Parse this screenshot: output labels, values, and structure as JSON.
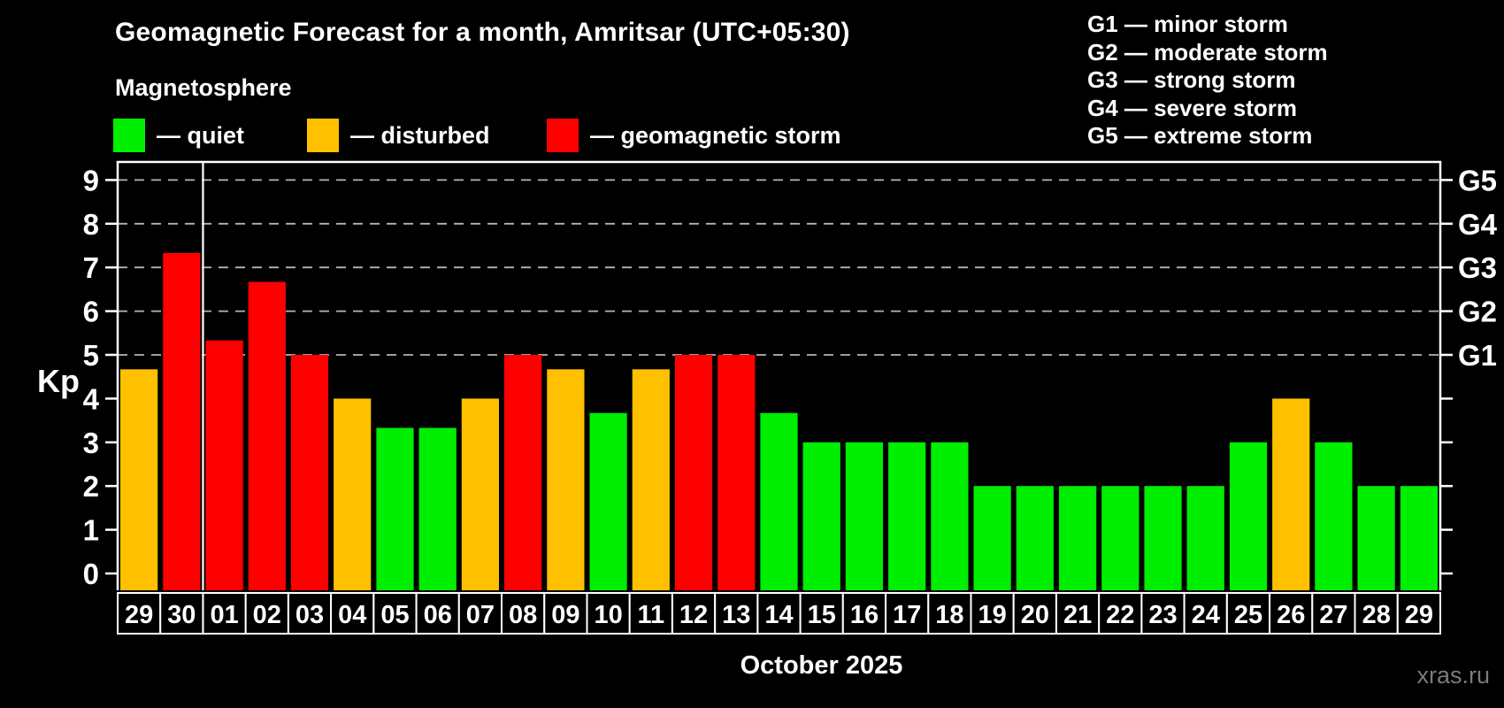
{
  "header": {
    "title": "Geomagnetic Forecast for a month, Amritsar (UTC+05:30)",
    "subtitle": "Magnetosphere",
    "watermark": "xras.ru"
  },
  "legend": {
    "dash": "—",
    "items": [
      {
        "key": "quiet",
        "label": "quiet",
        "color": "#00ee00"
      },
      {
        "key": "disturbed",
        "label": "disturbed",
        "color": "#ffc000"
      },
      {
        "key": "storm",
        "label": "geomagnetic storm",
        "color": "#ff0000"
      }
    ]
  },
  "storm_scale": {
    "separator": "—",
    "items": [
      {
        "code": "G1",
        "label": "minor storm",
        "kp": 5
      },
      {
        "code": "G2",
        "label": "moderate storm",
        "kp": 6
      },
      {
        "code": "G3",
        "label": "strong storm",
        "kp": 7
      },
      {
        "code": "G4",
        "label": "severe storm",
        "kp": 8
      },
      {
        "code": "G5",
        "label": "extreme storm",
        "kp": 9
      }
    ]
  },
  "chart_data": {
    "type": "bar",
    "title": "Geomagnetic Forecast for a month, Amritsar (UTC+05:30)",
    "xlabel": "October 2025",
    "ylabel": "Kp",
    "ylim": [
      0,
      9
    ],
    "y_ticks": [
      0,
      1,
      2,
      3,
      4,
      5,
      6,
      7,
      8,
      9
    ],
    "gridlines_at": [
      5,
      6,
      7,
      8,
      9
    ],
    "grid_style": "dashed",
    "legend_position": "top-left",
    "categories": [
      "29",
      "30",
      "01",
      "02",
      "03",
      "04",
      "05",
      "06",
      "07",
      "08",
      "09",
      "10",
      "11",
      "12",
      "13",
      "14",
      "15",
      "16",
      "17",
      "18",
      "19",
      "20",
      "21",
      "22",
      "23",
      "24",
      "25",
      "26",
      "27",
      "28",
      "29"
    ],
    "values": [
      4.67,
      7.33,
      5.33,
      6.67,
      5,
      4,
      3.33,
      3.33,
      4,
      5,
      4.67,
      3.67,
      4.67,
      5,
      5,
      3.67,
      3,
      3,
      3,
      3,
      2,
      2,
      2,
      2,
      2,
      2,
      3,
      4,
      3,
      2,
      2
    ],
    "statuses": [
      "disturbed",
      "storm",
      "storm",
      "storm",
      "storm",
      "disturbed",
      "quiet",
      "quiet",
      "disturbed",
      "storm",
      "disturbed",
      "quiet",
      "disturbed",
      "storm",
      "storm",
      "quiet",
      "quiet",
      "quiet",
      "quiet",
      "quiet",
      "quiet",
      "quiet",
      "quiet",
      "quiet",
      "quiet",
      "quiet",
      "quiet",
      "disturbed",
      "quiet",
      "quiet",
      "quiet"
    ],
    "month_separator_after_index": 1,
    "right_axis_labels": [
      {
        "kp": 5,
        "label": "G1"
      },
      {
        "kp": 6,
        "label": "G2"
      },
      {
        "kp": 7,
        "label": "G3"
      },
      {
        "kp": 8,
        "label": "G4"
      },
      {
        "kp": 9,
        "label": "G5"
      }
    ],
    "colors": {
      "quiet": "#00ee00",
      "disturbed": "#ffc000",
      "storm": "#ff0000",
      "grid": "#b5b5b5",
      "axis": "#ffffff",
      "background": "#000000"
    }
  }
}
